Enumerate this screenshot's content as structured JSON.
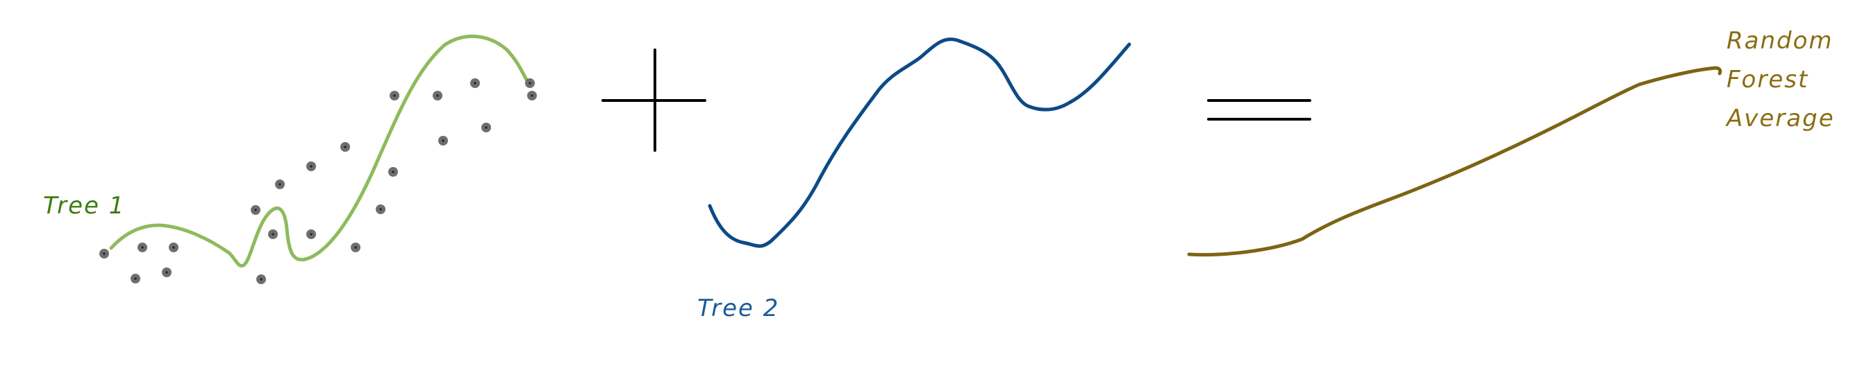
{
  "diagram": {
    "tree1": {
      "label": "Tree 1",
      "color": "#8dbb5d",
      "label_color": "#3c7d12"
    },
    "tree2": {
      "label": "Tree 2",
      "color": "#0c4a88",
      "label_color": "#1e5a9a"
    },
    "forest": {
      "label_lines": [
        "Random",
        "Forest",
        "Average"
      ],
      "color": "#7d6414",
      "label_color": "#8a6d12"
    },
    "operators": {
      "plus": "plus-sign",
      "equals": "equals-sign",
      "color": "#000000"
    },
    "data_points": {
      "color": "#6e6e6e"
    }
  }
}
